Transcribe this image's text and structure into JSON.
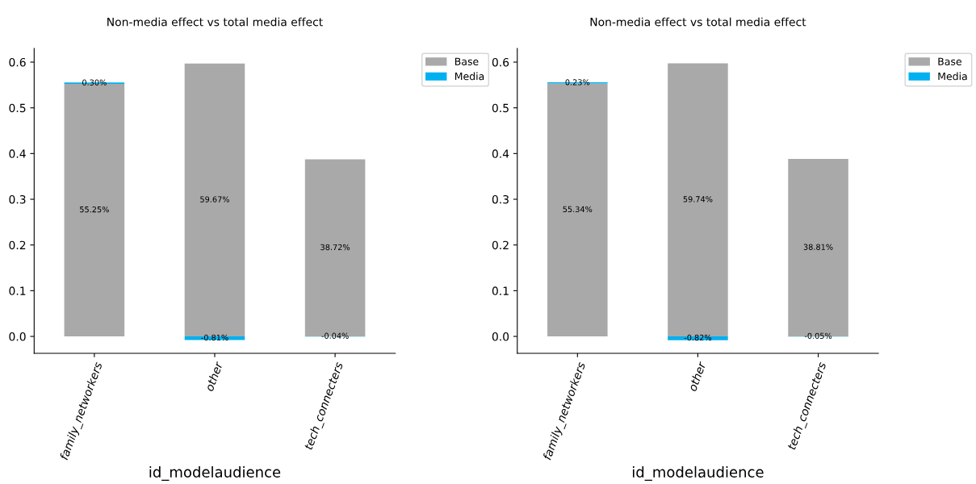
{
  "chart_data": [
    {
      "type": "bar",
      "title": "Non-media effect vs total media effect",
      "xlabel": "id_modelaudience",
      "categories": [
        "family_networkers",
        "other",
        "tech_connecters"
      ],
      "stacked": true,
      "ylim": [
        -0.037,
        0.63
      ],
      "yticks": [
        {
          "value": 0,
          "label": "0.0"
        },
        0.1,
        0.2,
        0.3,
        0.4,
        0.5,
        0.6
      ],
      "legend": "top right",
      "series": [
        {
          "name": "Base",
          "color": "#a9a9a9",
          "values": [
            0.5525,
            0.5967,
            0.3872
          ],
          "value_labels": [
            "55.25%",
            "59.67%",
            "38.72%"
          ]
        },
        {
          "name": "Media",
          "color": "#00b0f0",
          "values": [
            0.003,
            -0.0081,
            -0.0004
          ],
          "value_labels": [
            "0.30%",
            "-0.81%",
            "-0.04%"
          ]
        }
      ]
    },
    {
      "type": "bar",
      "title": "Non-media effect vs total media effect",
      "xlabel": "id_modelaudience",
      "categories": [
        "family_networkers",
        "other",
        "tech_connecters"
      ],
      "stacked": true,
      "ylim": [
        -0.037,
        0.63
      ],
      "yticks": [
        {
          "value": 0,
          "label": "0.0"
        },
        0.1,
        0.2,
        0.3,
        0.4,
        0.5,
        0.6
      ],
      "legend": "top right",
      "series": [
        {
          "name": "Base",
          "color": "#a9a9a9",
          "values": [
            0.5534,
            0.5974,
            0.3881
          ],
          "value_labels": [
            "55.34%",
            "59.74%",
            "38.81%"
          ]
        },
        {
          "name": "Media",
          "color": "#00b0f0",
          "values": [
            0.0023,
            -0.0082,
            -0.0005
          ],
          "value_labels": [
            "0.23%",
            "-0.82%",
            "-0.05%"
          ]
        }
      ]
    }
  ]
}
